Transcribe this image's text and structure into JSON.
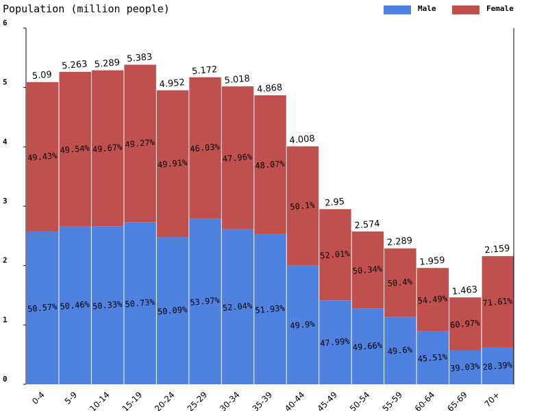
{
  "chart_data": {
    "type": "stacked_bar",
    "title": "Population (million people)",
    "categories": [
      "0-4",
      "5-9",
      "10-14",
      "15-19",
      "20-24",
      "25-29",
      "30-34",
      "35-39",
      "40-44",
      "45-49",
      "50-54",
      "55-59",
      "60-64",
      "65-69",
      "70+"
    ],
    "series": [
      {
        "name": "Male",
        "color": "#4f81e0",
        "values": [
          2.574,
          2.656,
          2.662,
          2.731,
          2.48,
          2.791,
          2.611,
          2.528,
          2.0,
          1.416,
          1.278,
          1.135,
          0.892,
          0.571,
          0.613
        ],
        "share_labels": [
          "50.57%",
          "50.46%",
          "50.33%",
          "50.73%",
          "50.09%",
          "53.97%",
          "52.04%",
          "51.93%",
          "49.9%",
          "47.99%",
          "49.66%",
          "49.6%",
          "45.51%",
          "39.03%",
          "28.39%"
        ]
      },
      {
        "name": "Female",
        "color": "#c0504d",
        "values": [
          2.516,
          2.607,
          2.627,
          2.652,
          2.472,
          2.381,
          2.407,
          2.34,
          2.008,
          1.534,
          1.296,
          1.154,
          1.067,
          0.892,
          1.546
        ],
        "share_labels": [
          "49.43%",
          "49.54%",
          "49.67%",
          "49.27%",
          "49.91%",
          "46.03%",
          "47.96%",
          "48.07%",
          "50.1%",
          "52.01%",
          "50.34%",
          "50.4%",
          "54.49%",
          "60.97%",
          "71.61%"
        ]
      }
    ],
    "totals": [
      5.09,
      5.263,
      5.289,
      5.383,
      4.952,
      5.172,
      5.018,
      4.868,
      4.008,
      2.95,
      2.574,
      2.289,
      1.959,
      1.463,
      2.159
    ],
    "ylim": [
      0,
      6
    ],
    "yticks": [
      0,
      1,
      2,
      3,
      4,
      5,
      6
    ]
  }
}
